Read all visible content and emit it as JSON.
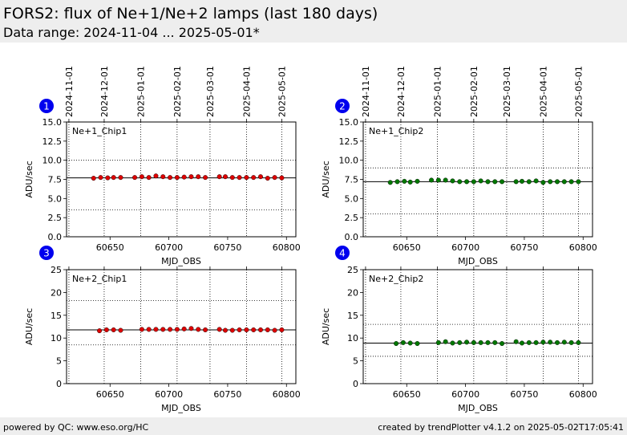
{
  "header": {
    "title": "FORS2: flux of Ne+1/Ne+2 lamps (last 180 days)",
    "subtitle": "Data range: 2024-11-04 ... 2025-05-01*"
  },
  "footer": {
    "left": "powered by QC: www.eso.org/HC",
    "right": "created by trendPlotter v4.1.2 on 2025-05-02T17:05:41"
  },
  "colors": {
    "chip1": "#dd0000",
    "chip2": "#007700",
    "badge": "#0000ee"
  },
  "chart_data": [
    {
      "type": "scatter",
      "panel": "1",
      "label": "Ne+1_Chip1",
      "xlabel": "MJD_OBS",
      "ylabel": "ADU/sec",
      "color": "#dd0000",
      "xlim": [
        60613,
        60808
      ],
      "ylim": [
        0,
        15
      ],
      "xticks": [
        60650,
        60700,
        60750,
        60800
      ],
      "yticks": [
        0.0,
        2.5,
        5.0,
        7.5,
        10.0,
        12.5,
        15.0
      ],
      "ytick_labels": [
        "0.0",
        "2.5",
        "5.0",
        "7.5",
        "10.0",
        "12.5",
        "15.0"
      ],
      "date_ticks": [
        "2024-11-01",
        "2024-12-01",
        "2025-01-01",
        "2025-02-01",
        "2025-03-01",
        "2025-04-01",
        "2025-05-01"
      ],
      "date_tick_mjd": [
        60615,
        60645,
        60676,
        60707,
        60735,
        60766,
        60796
      ],
      "ref_line": 7.7,
      "thresholds": [
        3.5,
        10.0
      ],
      "points": [
        [
          60636,
          7.65
        ],
        [
          60642,
          7.75
        ],
        [
          60648,
          7.7
        ],
        [
          60653,
          7.75
        ],
        [
          60659,
          7.75
        ],
        [
          60671,
          7.75
        ],
        [
          60677,
          7.85
        ],
        [
          60683,
          7.75
        ],
        [
          60689,
          7.95
        ],
        [
          60695,
          7.85
        ],
        [
          60701,
          7.75
        ],
        [
          60707,
          7.75
        ],
        [
          60713,
          7.8
        ],
        [
          60719,
          7.85
        ],
        [
          60725,
          7.85
        ],
        [
          60731,
          7.75
        ],
        [
          60743,
          7.85
        ],
        [
          60748,
          7.85
        ],
        [
          60754,
          7.75
        ],
        [
          60760,
          7.75
        ],
        [
          60766,
          7.75
        ],
        [
          60772,
          7.75
        ],
        [
          60778,
          7.85
        ],
        [
          60784,
          7.65
        ],
        [
          60790,
          7.75
        ],
        [
          60796,
          7.7
        ]
      ]
    },
    {
      "type": "scatter",
      "panel": "2",
      "label": "Ne+1_Chip2",
      "xlabel": "MJD_OBS",
      "ylabel": "ADU/sec",
      "color": "#007700",
      "xlim": [
        60613,
        60808
      ],
      "ylim": [
        0,
        15
      ],
      "xticks": [
        60650,
        60700,
        60750,
        60800
      ],
      "yticks": [
        0.0,
        2.5,
        5.0,
        7.5,
        10.0,
        12.5,
        15.0
      ],
      "ytick_labels": [
        "0.0",
        "2.5",
        "5.0",
        "7.5",
        "10.0",
        "12.5",
        "15.0"
      ],
      "date_ticks": [
        "2024-11-01",
        "2024-12-01",
        "2025-01-01",
        "2025-02-01",
        "2025-03-01",
        "2025-04-01",
        "2025-05-01"
      ],
      "date_tick_mjd": [
        60615,
        60645,
        60676,
        60707,
        60735,
        60766,
        60796
      ],
      "ref_line": 7.2,
      "thresholds": [
        3.0,
        9.0
      ],
      "points": [
        [
          60636,
          7.1
        ],
        [
          60642,
          7.2
        ],
        [
          60648,
          7.25
        ],
        [
          60653,
          7.15
        ],
        [
          60659,
          7.25
        ],
        [
          60671,
          7.4
        ],
        [
          60677,
          7.4
        ],
        [
          60683,
          7.4
        ],
        [
          60689,
          7.3
        ],
        [
          60695,
          7.2
        ],
        [
          60701,
          7.2
        ],
        [
          60707,
          7.2
        ],
        [
          60713,
          7.3
        ],
        [
          60719,
          7.2
        ],
        [
          60725,
          7.2
        ],
        [
          60731,
          7.2
        ],
        [
          60743,
          7.2
        ],
        [
          60748,
          7.25
        ],
        [
          60754,
          7.2
        ],
        [
          60760,
          7.3
        ],
        [
          60766,
          7.1
        ],
        [
          60772,
          7.2
        ],
        [
          60778,
          7.2
        ],
        [
          60784,
          7.2
        ],
        [
          60790,
          7.2
        ],
        [
          60796,
          7.2
        ]
      ]
    },
    {
      "type": "scatter",
      "panel": "3",
      "label": "Ne+2_Chip1",
      "xlabel": "MJD_OBS",
      "ylabel": "ADU/sec",
      "color": "#dd0000",
      "xlim": [
        60613,
        60808
      ],
      "ylim": [
        0,
        25
      ],
      "xticks": [
        60650,
        60700,
        60750,
        60800
      ],
      "yticks": [
        0,
        5,
        10,
        15,
        20,
        25
      ],
      "ytick_labels": [
        "0",
        "5",
        "10",
        "15",
        "20",
        "25"
      ],
      "date_tick_mjd": [
        60615,
        60645,
        60676,
        60707,
        60735,
        60766,
        60796
      ],
      "ref_line": 11.8,
      "thresholds": [
        8.5,
        18.2
      ],
      "points": [
        [
          60641,
          11.6
        ],
        [
          60647,
          11.8
        ],
        [
          60653,
          11.8
        ],
        [
          60659,
          11.7
        ],
        [
          60677,
          11.9
        ],
        [
          60683,
          11.9
        ],
        [
          60689,
          11.9
        ],
        [
          60695,
          11.9
        ],
        [
          60701,
          11.9
        ],
        [
          60707,
          11.9
        ],
        [
          60713,
          12.0
        ],
        [
          60719,
          12.1
        ],
        [
          60725,
          11.9
        ],
        [
          60731,
          11.8
        ],
        [
          60743,
          11.9
        ],
        [
          60748,
          11.7
        ],
        [
          60754,
          11.7
        ],
        [
          60760,
          11.8
        ],
        [
          60766,
          11.8
        ],
        [
          60772,
          11.8
        ],
        [
          60778,
          11.8
        ],
        [
          60784,
          11.8
        ],
        [
          60790,
          11.7
        ],
        [
          60796,
          11.8
        ]
      ]
    },
    {
      "type": "scatter",
      "panel": "4",
      "label": "Ne+2_Chip2",
      "xlabel": "MJD_OBS",
      "ylabel": "ADU/sec",
      "color": "#007700",
      "xlim": [
        60613,
        60808
      ],
      "ylim": [
        0,
        25
      ],
      "xticks": [
        60650,
        60700,
        60750,
        60800
      ],
      "yticks": [
        0,
        5,
        10,
        15,
        20,
        25
      ],
      "ytick_labels": [
        "0",
        "5",
        "10",
        "15",
        "20",
        "25"
      ],
      "date_tick_mjd": [
        60615,
        60645,
        60676,
        60707,
        60735,
        60766,
        60796
      ],
      "ref_line": 8.9,
      "thresholds": [
        6.0,
        13.0
      ],
      "points": [
        [
          60641,
          8.8
        ],
        [
          60647,
          9.0
        ],
        [
          60653,
          8.9
        ],
        [
          60659,
          8.8
        ],
        [
          60677,
          9.0
        ],
        [
          60683,
          9.2
        ],
        [
          60689,
          8.9
        ],
        [
          60695,
          9.0
        ],
        [
          60701,
          9.1
        ],
        [
          60707,
          9.0
        ],
        [
          60713,
          9.0
        ],
        [
          60719,
          9.0
        ],
        [
          60725,
          9.0
        ],
        [
          60731,
          8.8
        ],
        [
          60743,
          9.2
        ],
        [
          60748,
          8.9
        ],
        [
          60754,
          9.0
        ],
        [
          60760,
          9.0
        ],
        [
          60766,
          9.1
        ],
        [
          60772,
          9.1
        ],
        [
          60778,
          9.0
        ],
        [
          60784,
          9.1
        ],
        [
          60790,
          9.0
        ],
        [
          60796,
          9.0
        ]
      ]
    }
  ]
}
